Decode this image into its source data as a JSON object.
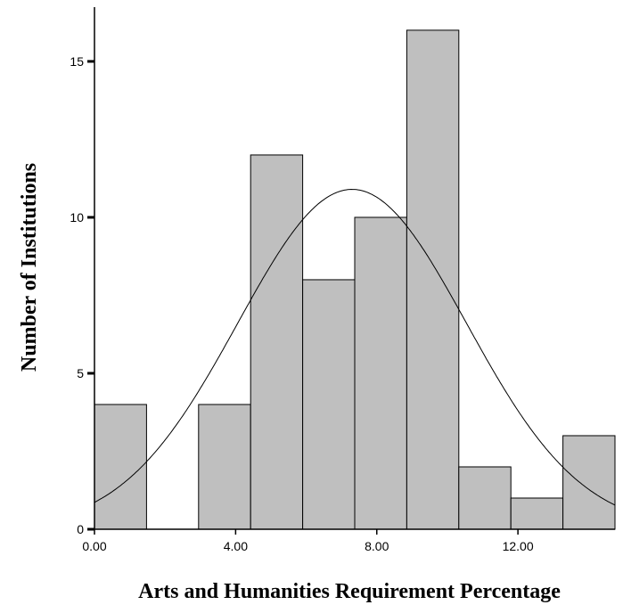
{
  "chart_data": {
    "type": "histogram",
    "xlabel": "Arts and Humanities Requirement Percentage",
    "ylabel": "Number of Institutions",
    "bins": [
      0,
      1.475,
      2.95,
      4.425,
      5.9,
      7.375,
      8.85,
      10.325,
      11.8,
      13.275,
      14.75
    ],
    "values": [
      4,
      0,
      4,
      12,
      8,
      10,
      16,
      2,
      1,
      3
    ],
    "color": "#bfbfbf",
    "normal_curve": {
      "mean": 7.3,
      "std": 3.24
    },
    "xlim": [
      0,
      14.75
    ],
    "ylim": [
      0,
      16.74
    ],
    "xticks": [
      {
        "value": 0,
        "label": "0.00"
      },
      {
        "value": 4,
        "label": "4.00"
      },
      {
        "value": 8,
        "label": "8.00"
      },
      {
        "value": 12,
        "label": "12.00"
      }
    ],
    "yticks": [
      0,
      5,
      10,
      15
    ]
  }
}
